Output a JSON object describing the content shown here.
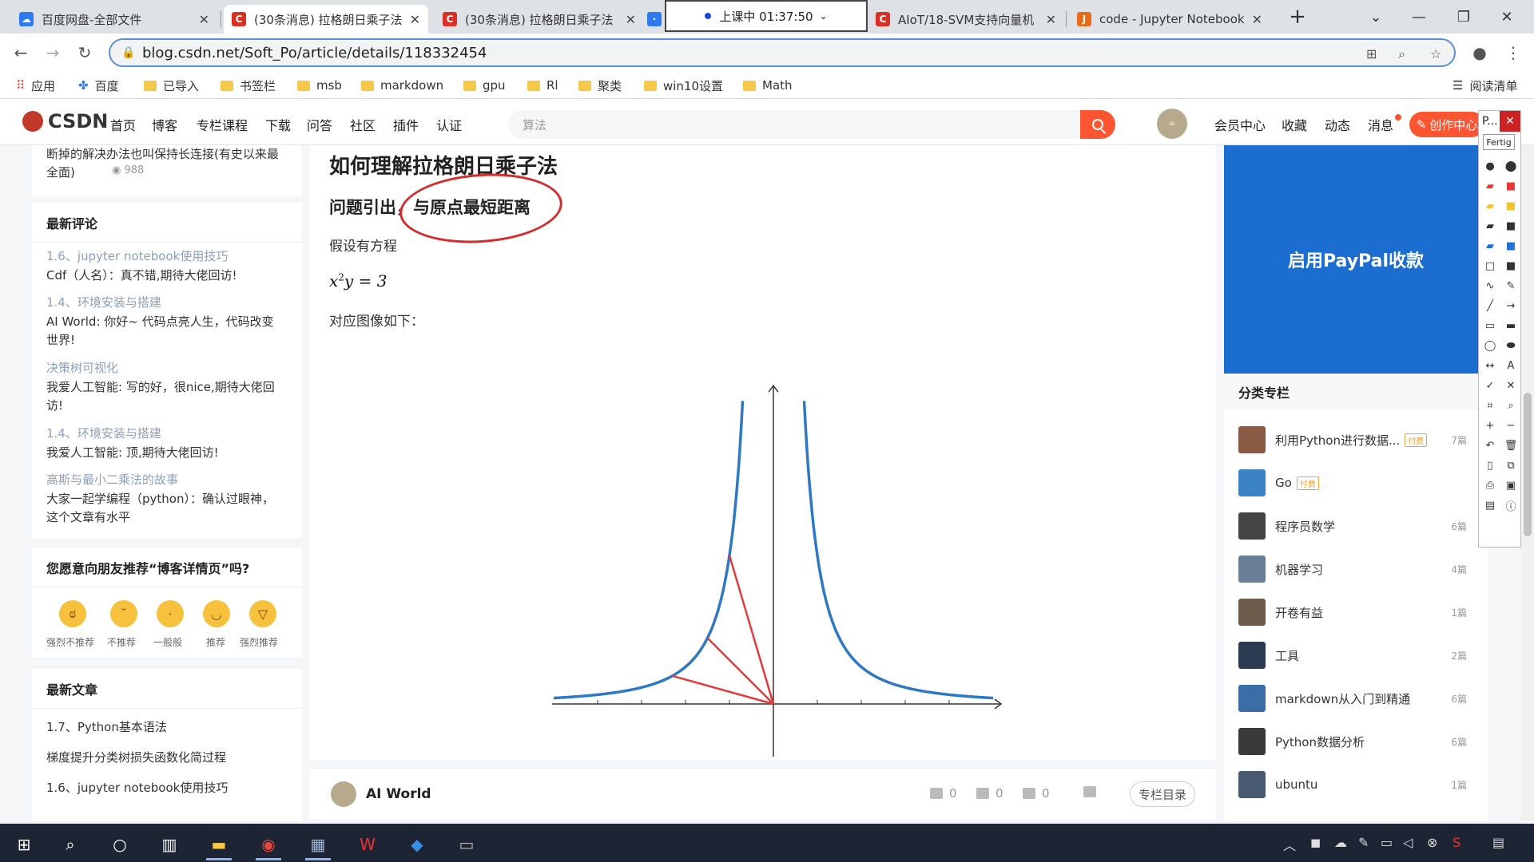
{
  "browser": {
    "tabs": [
      {
        "label": "百度网盘-全部文件",
        "icon": "baidu-pan-icon",
        "color": "#2f7af0"
      },
      {
        "label": "(30条消息) 拉格朗日乘子法",
        "icon": "csdn-icon",
        "color": "#d93025"
      },
      {
        "label": "(30条消息) 拉格朗日乘子法",
        "icon": "csdn-icon",
        "color": "#d93025"
      },
      {
        "label": "AIoT/18-SVM支持向量机",
        "icon": "csdn-icon",
        "color": "#d93025"
      },
      {
        "label": "code - Jupyter Notebook",
        "icon": "jupyter-icon",
        "color": "#e86b1a"
      }
    ],
    "class_timer": "上课中 01:37:50",
    "url": "blog.csdn.net/Soft_Po/article/details/118332454",
    "bookmarks": [
      "应用",
      "百度",
      "已导入",
      "书签栏",
      "msb",
      "markdown",
      "gpu",
      "Rl",
      "聚类",
      "win10设置",
      "Math"
    ],
    "reading_list": "阅读清单"
  },
  "csdn": {
    "logo": "CSDN",
    "nav": [
      "首页",
      "博客",
      "专栏课程",
      "下载",
      "问答",
      "社区",
      "插件",
      "认证"
    ],
    "search_placeholder": "算法",
    "user_nav": [
      "会员中心",
      "收藏",
      "动态",
      "消息"
    ],
    "create_button": "创作中心"
  },
  "left_sidebar": {
    "top_snippet": "断掉的解决办法也叫保持长连接(有史以来最全面)",
    "top_snippet_views": "988",
    "recent_comments_title": "最新评论",
    "comments": [
      {
        "link": "1.6、jupyter notebook使用技巧",
        "text": "Cdf（人名）：真不错,期待大佬回访!"
      },
      {
        "link": "1.4、环境安装与搭建",
        "text": "AI World: 你好~ 代码点亮人生，代码改变世界!"
      },
      {
        "link": "决策树可视化",
        "text": "我爱人工智能: 写的好，很nice,期待大佬回访!"
      },
      {
        "link": "1.4、环境安装与搭建",
        "text": "我爱人工智能: 顶,期待大佬回访!"
      },
      {
        "link": "高斯与最小二乘法的故事",
        "text": "大家一起学编程（python）：确认过眼神，这个文章有水平"
      }
    ],
    "recommend_title": "您愿意向朋友推荐“博客详情页”吗?",
    "ratings": [
      "强烈不推荐",
      "不推荐",
      "一般般",
      "推荐",
      "强烈推荐"
    ],
    "recent_articles_title": "最新文章",
    "recent_articles": [
      "1.7、Python基本语法",
      "梯度提升分类树损失函数化简过程",
      "1.6、jupyter notebook使用技巧"
    ]
  },
  "article": {
    "title": "如何理解拉格朗日乘子法",
    "section": "问题引出，与原点最短距离",
    "para1": "假设有方程",
    "formula_base": "x",
    "formula_exp": "2",
    "formula_rest": "y = 3",
    "para2": "对应图像如下：",
    "author": "AI World",
    "likes": "0",
    "comments": "0",
    "favorites": "0",
    "toc_button": "专栏目录"
  },
  "right_sidebar": {
    "ad_text": "启用PayPal收款",
    "columns_title": "分类专栏",
    "columns": [
      {
        "name": "利用Python进行数据...",
        "tag": "付费",
        "count": "7篇",
        "color": "#8a5a44"
      },
      {
        "name": "Go",
        "tag": "付费",
        "count": "",
        "color": "#3b82c4"
      },
      {
        "name": "程序员数学",
        "tag": "",
        "count": "6篇",
        "color": "#444444"
      },
      {
        "name": "机器学习",
        "tag": "",
        "count": "4篇",
        "color": "#6b7f99"
      },
      {
        "name": "开卷有益",
        "tag": "",
        "count": "1篇",
        "color": "#6d5b4b"
      },
      {
        "name": "工具",
        "tag": "",
        "count": "2篇",
        "color": "#2b3c52"
      },
      {
        "name": "markdown从入门到精通",
        "tag": "",
        "count": "6篇",
        "color": "#3a6ea5"
      },
      {
        "name": "Python数据分析",
        "tag": "",
        "count": "6篇",
        "color": "#3a3a3a"
      },
      {
        "name": "ubuntu",
        "tag": "",
        "count": "1篇",
        "color": "#485a70"
      }
    ]
  },
  "annotation_tool": {
    "title": "P...",
    "tooltip": "Fertig"
  },
  "chart_data": {
    "type": "line",
    "title": "",
    "xlabel": "",
    "ylabel": "",
    "series": [
      {
        "points": [
          [
            -5,
            0.12
          ],
          [
            -4,
            0.1875
          ],
          [
            -3,
            0.333
          ],
          [
            -2,
            0.75
          ],
          [
            -1.5,
            1.333
          ],
          [
            -1,
            3
          ],
          [
            -0.8,
            4.69
          ],
          [
            -0.7,
            6.12
          ]
        ]
      },
      {
        "points": [
          [
            0.7,
            6.12
          ],
          [
            0.8,
            4.69
          ],
          [
            1,
            3
          ],
          [
            1.5,
            1.333
          ],
          [
            2,
            0.75
          ],
          [
            3,
            0.333
          ],
          [
            4,
            0.1875
          ],
          [
            5,
            0.12
          ]
        ]
      }
    ],
    "segments_from_origin": [
      [
        -1,
        3
      ],
      [
        -1.5,
        1.333
      ],
      [
        -2.3,
        0.567
      ]
    ],
    "segment_color": "#e23b3b",
    "curve_color": "#2f78c4",
    "xlim": [
      -5,
      5
    ],
    "ylim": [
      -1,
      6.4
    ]
  }
}
